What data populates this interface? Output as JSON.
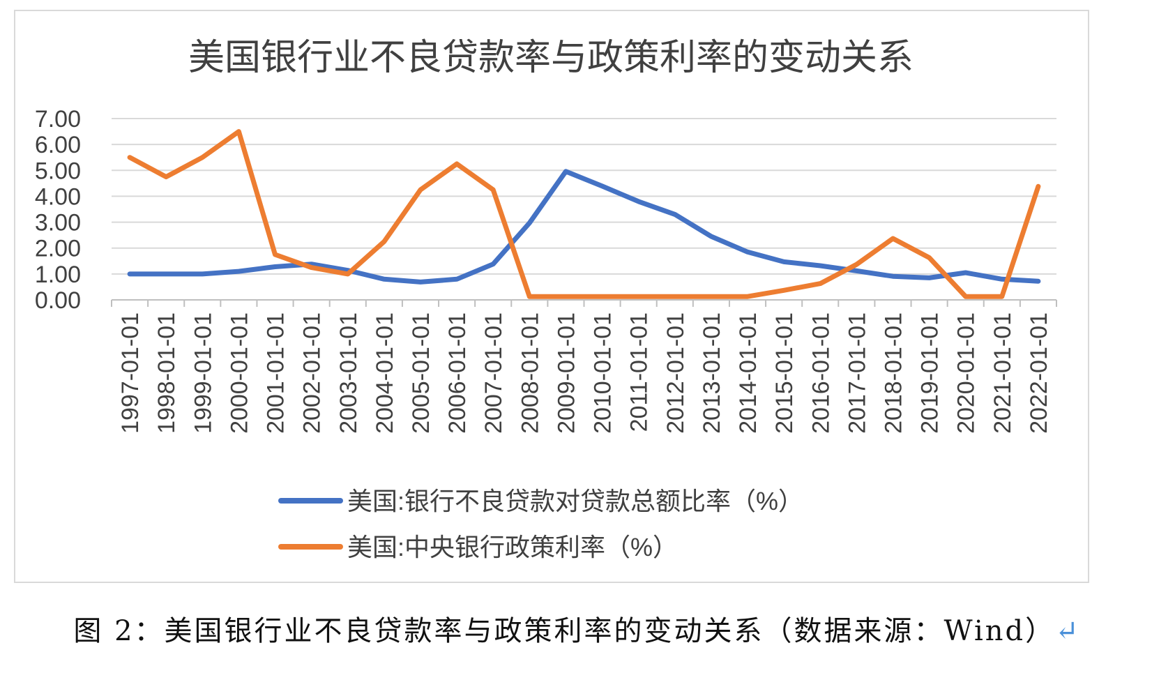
{
  "caption": {
    "text": "图 2：美国银行业不良贷款率与政策利率的变动关系（数据来源：Wind）",
    "return_mark": "↵"
  },
  "chart_data": {
    "type": "line",
    "title": "美国银行业不良贷款率与政策利率的变动关系",
    "xlabel": "",
    "ylabel": "",
    "ylim": [
      0,
      7
    ],
    "y_ticks": [
      "0.00",
      "1.00",
      "2.00",
      "3.00",
      "4.00",
      "5.00",
      "6.00",
      "7.00"
    ],
    "grid": true,
    "legend_position": "bottom",
    "categories": [
      "1997-01-01",
      "1998-01-01",
      "1999-01-01",
      "2000-01-01",
      "2001-01-01",
      "2002-01-01",
      "2003-01-01",
      "2004-01-01",
      "2005-01-01",
      "2006-01-01",
      "2007-01-01",
      "2008-01-01",
      "2009-01-01",
      "2010-01-01",
      "2011-01-01",
      "2012-01-01",
      "2013-01-01",
      "2014-01-01",
      "2015-01-01",
      "2016-01-01",
      "2017-01-01",
      "2018-01-01",
      "2019-01-01",
      "2020-01-01",
      "2021-01-01",
      "2022-01-01"
    ],
    "series": [
      {
        "name": "美国:银行不良贷款对贷款总额比率（%）",
        "color": "#4472c4",
        "values": [
          1.0,
          1.0,
          1.0,
          1.1,
          1.28,
          1.38,
          1.14,
          0.8,
          0.69,
          0.8,
          1.38,
          2.97,
          4.96,
          4.39,
          3.8,
          3.3,
          2.45,
          1.85,
          1.47,
          1.32,
          1.12,
          0.91,
          0.85,
          1.05,
          0.8,
          0.72
        ]
      },
      {
        "name": "美国:中央银行政策利率（%）",
        "color": "#ed7d31",
        "values": [
          5.5,
          4.75,
          5.5,
          6.5,
          1.75,
          1.25,
          1.0,
          2.25,
          4.25,
          5.25,
          4.25,
          0.13,
          0.13,
          0.13,
          0.13,
          0.13,
          0.13,
          0.13,
          0.37,
          0.63,
          1.37,
          2.37,
          1.63,
          0.13,
          0.13,
          4.38
        ]
      }
    ]
  }
}
